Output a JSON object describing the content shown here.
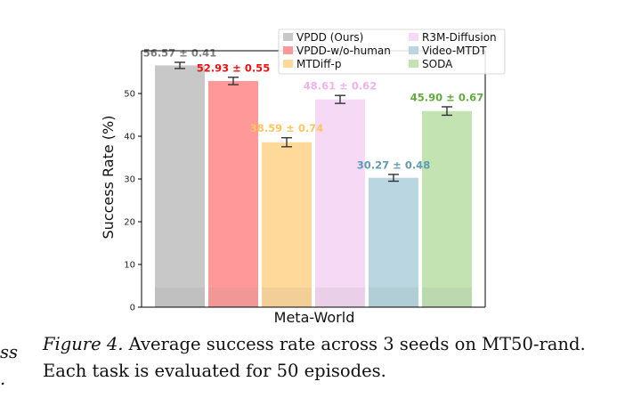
{
  "chart_data": {
    "type": "bar",
    "categories": [
      "VPDD (Ours)",
      "VPDD-w/o-human",
      "MTDiff-p",
      "R3M-Diffusion",
      "Video-MTDT",
      "SODA"
    ],
    "values": [
      56.57,
      52.93,
      38.59,
      48.61,
      30.27,
      45.9
    ],
    "errors": [
      0.41,
      0.55,
      0.74,
      0.62,
      0.48,
      0.67
    ],
    "value_labels": [
      "56.57 ± 0.41",
      "52.93 ± 0.55",
      "38.59 ± 0.74",
      "48.61 ± 0.62",
      "30.27 ± 0.48",
      "45.90 ± 0.67"
    ],
    "colors": [
      "#c8c8c8",
      "#ff9999",
      "#ffd999",
      "#f6d9f4",
      "#b9d6e1",
      "#c3e3b3"
    ],
    "label_colors": [
      "#7f7f7f",
      "#ee1111",
      "#ffc55e",
      "#f0b2ec",
      "#5f9cb3",
      "#62ab3d"
    ],
    "xlabel": "Meta-World",
    "ylabel": "Success Rate (%)",
    "ylim": [
      0,
      60
    ],
    "yticks": [
      "0",
      "10",
      "20",
      "30",
      "40",
      "50"
    ],
    "legend": [
      "VPDD (Ours)",
      "VPDD-w/o-human",
      "MTDiff-p",
      "R3M-Diffusion",
      "Video-MTDT",
      "SODA"
    ],
    "legend_placement": "top-right",
    "grid": false
  },
  "caption": {
    "label": "Figure 4.",
    "text": " Average success rate across 3 seeds on MT50-rand. Each task is evaluated for 50 episodes."
  },
  "side_fragments": [
    "ss",
    "."
  ]
}
